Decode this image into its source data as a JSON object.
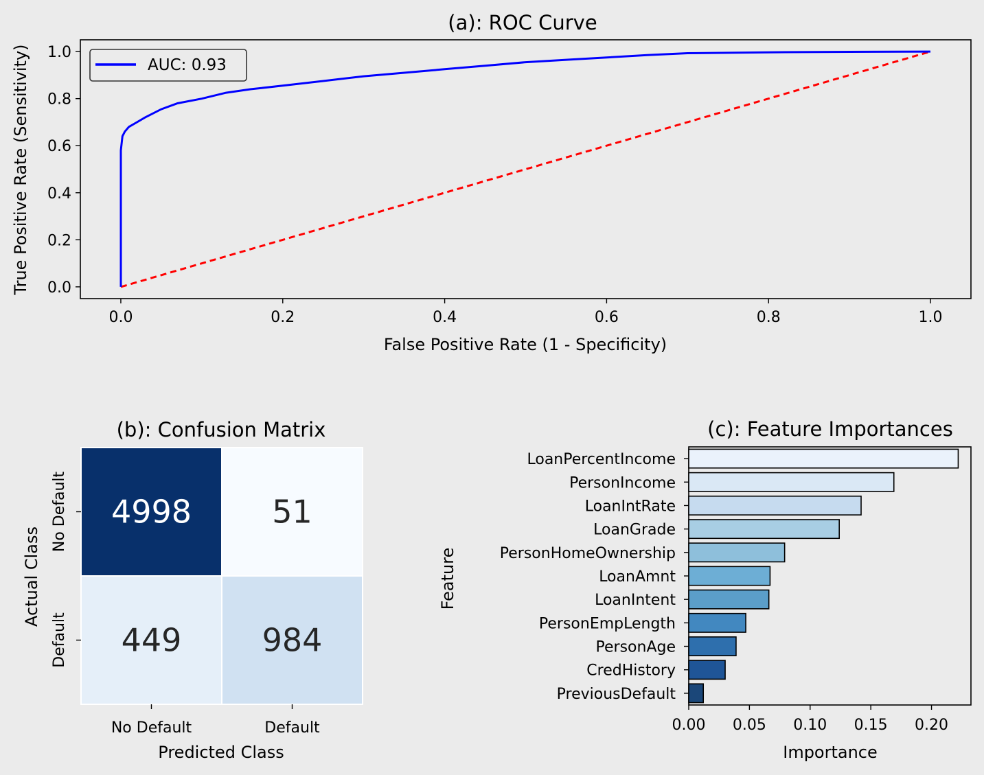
{
  "chart_data": [
    {
      "type": "line",
      "title": "(a): ROC Curve",
      "xlabel": "False Positive Rate (1 - Specificity)",
      "ylabel": "True Positive Rate (Sensitivity)",
      "xlim": [
        -0.05,
        1.05
      ],
      "ylim": [
        -0.05,
        1.05
      ],
      "xticks": [
        "0.0",
        "0.2",
        "0.4",
        "0.6",
        "0.8",
        "1.0"
      ],
      "yticks": [
        "0.0",
        "0.2",
        "0.4",
        "0.6",
        "0.8",
        "1.0"
      ],
      "legend": "top-left",
      "grid": false,
      "series": [
        {
          "name": "AUC: 0.93",
          "color": "#0000ff",
          "x": [
            0,
            0,
            0,
            0.002,
            0.005,
            0.01,
            0.02,
            0.03,
            0.05,
            0.07,
            0.1,
            0.13,
            0.16,
            0.2,
            0.25,
            0.3,
            0.35,
            0.4,
            0.45,
            0.5,
            0.55,
            0.6,
            0.65,
            0.7,
            0.8,
            0.9,
            1.0
          ],
          "y": [
            0,
            0.4,
            0.58,
            0.64,
            0.66,
            0.68,
            0.7,
            0.72,
            0.755,
            0.78,
            0.8,
            0.825,
            0.84,
            0.855,
            0.875,
            0.895,
            0.91,
            0.925,
            0.94,
            0.955,
            0.965,
            0.975,
            0.985,
            0.993,
            0.997,
            0.999,
            1.0
          ]
        },
        {
          "name": "",
          "color": "#ff0000",
          "dash": true,
          "x": [
            0,
            1
          ],
          "y": [
            0,
            1
          ]
        }
      ]
    },
    {
      "type": "heatmap",
      "title": "(b): Confusion Matrix",
      "xlabel": "Predicted Class",
      "ylabel": "Actual Class",
      "xticklabels": [
        "No Default",
        "Default"
      ],
      "yticklabels": [
        "No Default",
        "Default"
      ],
      "values": [
        [
          4998,
          51
        ],
        [
          449,
          984
        ]
      ],
      "value_labels": [
        [
          "4998",
          "51"
        ],
        [
          "449",
          "984"
        ]
      ],
      "colors": [
        [
          "#08306b",
          "#f7fbff"
        ],
        [
          "#e5eff9",
          "#d0e1f2"
        ]
      ],
      "text_colors": [
        [
          "#ffffff",
          "#262626"
        ],
        [
          "#262626",
          "#262626"
        ]
      ]
    },
    {
      "type": "bar",
      "orientation": "horizontal",
      "title": "(c): Feature Importances",
      "xlabel": "Importance",
      "ylabel": "Feature",
      "xlim": [
        0,
        0.2325
      ],
      "xticks": [
        "0.00",
        "0.05",
        "0.10",
        "0.15",
        "0.20"
      ],
      "categories": [
        "LoanPercentIncome",
        "PersonIncome",
        "LoanIntRate",
        "LoanGrade",
        "PersonHomeOwnership",
        "LoanAmnt",
        "LoanIntent",
        "PersonEmpLength",
        "PersonAge",
        "CredHistory",
        "PreviousDefault"
      ],
      "values": [
        0.222,
        0.169,
        0.142,
        0.124,
        0.079,
        0.067,
        0.066,
        0.047,
        0.039,
        0.03,
        0.012
      ],
      "colors": [
        "#eaf2fb",
        "#dae8f5",
        "#c6dbef",
        "#a8cee4",
        "#8ebfdb",
        "#6daed5",
        "#5b9ec9",
        "#4288c0",
        "#2e6fad",
        "#1f5597",
        "#1b4779"
      ]
    }
  ]
}
